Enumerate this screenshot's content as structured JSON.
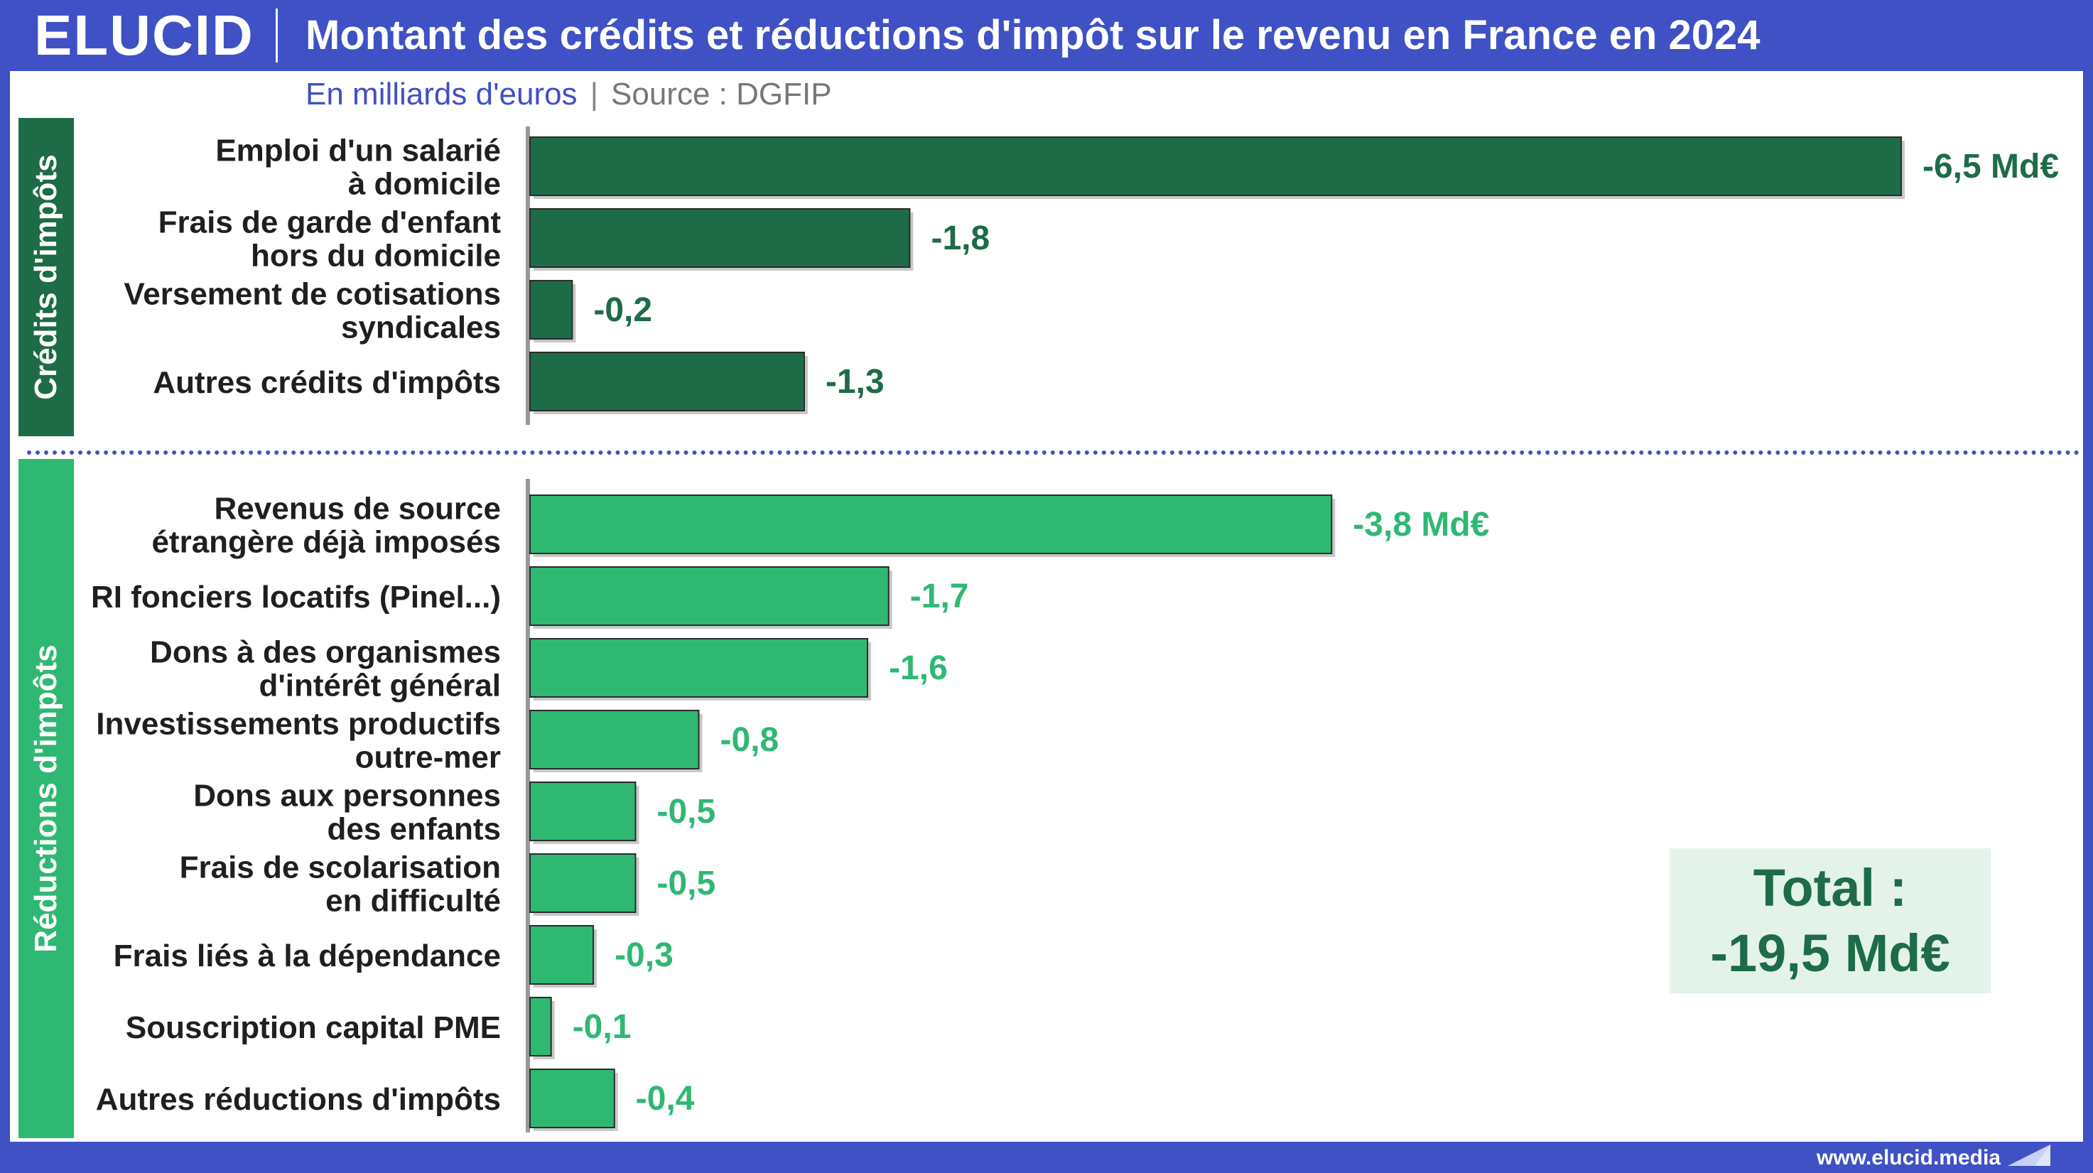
{
  "header": {
    "logo": "ELUCID",
    "title": "Montant des crédits et réductions d'impôt sur le revenu en France en 2024"
  },
  "subtitle": {
    "units": "En milliards d'euros",
    "separator": "|",
    "source": "Source : DGFIP"
  },
  "footer": {
    "website": "www.elucid.media"
  },
  "colors": {
    "frame": "#3f51c4",
    "credits": "#1e6b48",
    "reductions": "#2fb872"
  },
  "total": {
    "line1": "Total :",
    "line2": "-19,5 Md€"
  },
  "chart_data": {
    "type": "bar",
    "orientation": "horizontal",
    "title": "Montant des crédits et réductions d'impôt sur le revenu en France en 2024",
    "units": "milliards d'euros",
    "groups": [
      {
        "name": "Crédits d'impôts",
        "color": "#1e6b48",
        "items": [
          {
            "label": [
              "Emploi d'un salarié",
              "à domicile"
            ],
            "value": -6.5,
            "display": "-6,5 Md€"
          },
          {
            "label": [
              "Frais de garde d'enfant",
              "hors du domicile"
            ],
            "value": -1.8,
            "display": "-1,8"
          },
          {
            "label": [
              "Versement de cotisations",
              "syndicales"
            ],
            "value": -0.2,
            "display": "-0,2"
          },
          {
            "label": [
              "Autres crédits d'impôts"
            ],
            "value": -1.3,
            "display": "-1,3"
          }
        ]
      },
      {
        "name": "Réductions d'impôts",
        "color": "#2fb872",
        "items": [
          {
            "label": [
              "Revenus de source",
              "étrangère déjà imposés"
            ],
            "value": -3.8,
            "display": "-3,8 Md€"
          },
          {
            "label": [
              "RI fonciers locatifs (Pinel...)"
            ],
            "value": -1.7,
            "display": "-1,7"
          },
          {
            "label": [
              "Dons à des organismes",
              "d'intérêt général"
            ],
            "value": -1.6,
            "display": "-1,6"
          },
          {
            "label": [
              "Investissements productifs",
              "outre-mer"
            ],
            "value": -0.8,
            "display": "-0,8"
          },
          {
            "label": [
              "Dons aux personnes",
              "des enfants"
            ],
            "value": -0.5,
            "display": "-0,5"
          },
          {
            "label": [
              "Frais de scolarisation",
              "en difficulté"
            ],
            "value": -0.5,
            "display": "-0,5"
          },
          {
            "label": [
              "Frais liés à la dépendance"
            ],
            "value": -0.3,
            "display": "-0,3"
          },
          {
            "label": [
              "Souscription capital PME"
            ],
            "value": -0.1,
            "display": "-0,1"
          },
          {
            "label": [
              "Autres réductions d'impôts"
            ],
            "value": -0.4,
            "display": "-0,4"
          }
        ]
      }
    ]
  }
}
